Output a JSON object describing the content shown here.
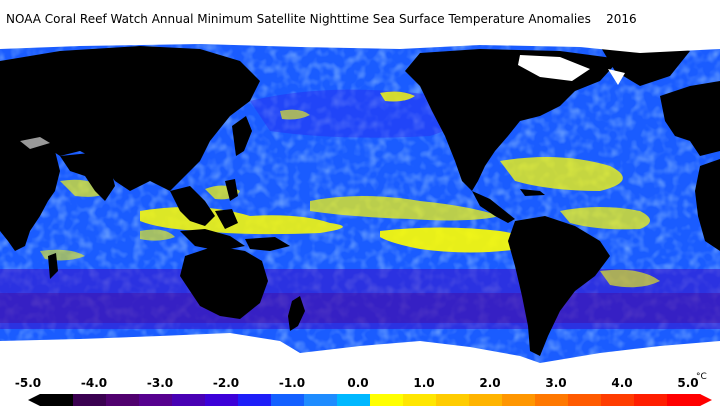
{
  "title": "NOAA Coral Reef Watch Annual Minimum Satellite Nighttime Sea Surface Temperature Anomalies    2016",
  "legend": {
    "ticks": [
      "-5.0",
      "-4.0",
      "-3.0",
      "-2.0",
      "-1.0",
      "0.0",
      "1.0",
      "2.0",
      "3.0",
      "4.0",
      "5.0"
    ],
    "unit": "°C",
    "range": [
      -5,
      5
    ],
    "bins": [
      {
        "color": "#000000"
      },
      {
        "color": "#3a0050"
      },
      {
        "color": "#50006e"
      },
      {
        "color": "#56008e"
      },
      {
        "color": "#4800b4"
      },
      {
        "color": "#3c00d8"
      },
      {
        "color": "#1e1ef8"
      },
      {
        "color": "#1460ff"
      },
      {
        "color": "#1e8cff"
      },
      {
        "color": "#00b8ff"
      },
      {
        "color": "#ffff00"
      },
      {
        "color": "#ffe600"
      },
      {
        "color": "#ffcc00"
      },
      {
        "color": "#ffb400"
      },
      {
        "color": "#ff9600"
      },
      {
        "color": "#ff7800"
      },
      {
        "color": "#ff5a00"
      },
      {
        "color": "#ff3c00"
      },
      {
        "color": "#ff1e00"
      },
      {
        "color": "#ff0000"
      }
    ]
  },
  "colors": {
    "land": "#000000",
    "ice": "#ffffff",
    "ocean_base": "#1a5cff",
    "warm": "#ffff00",
    "cool": "#3a10c8"
  }
}
